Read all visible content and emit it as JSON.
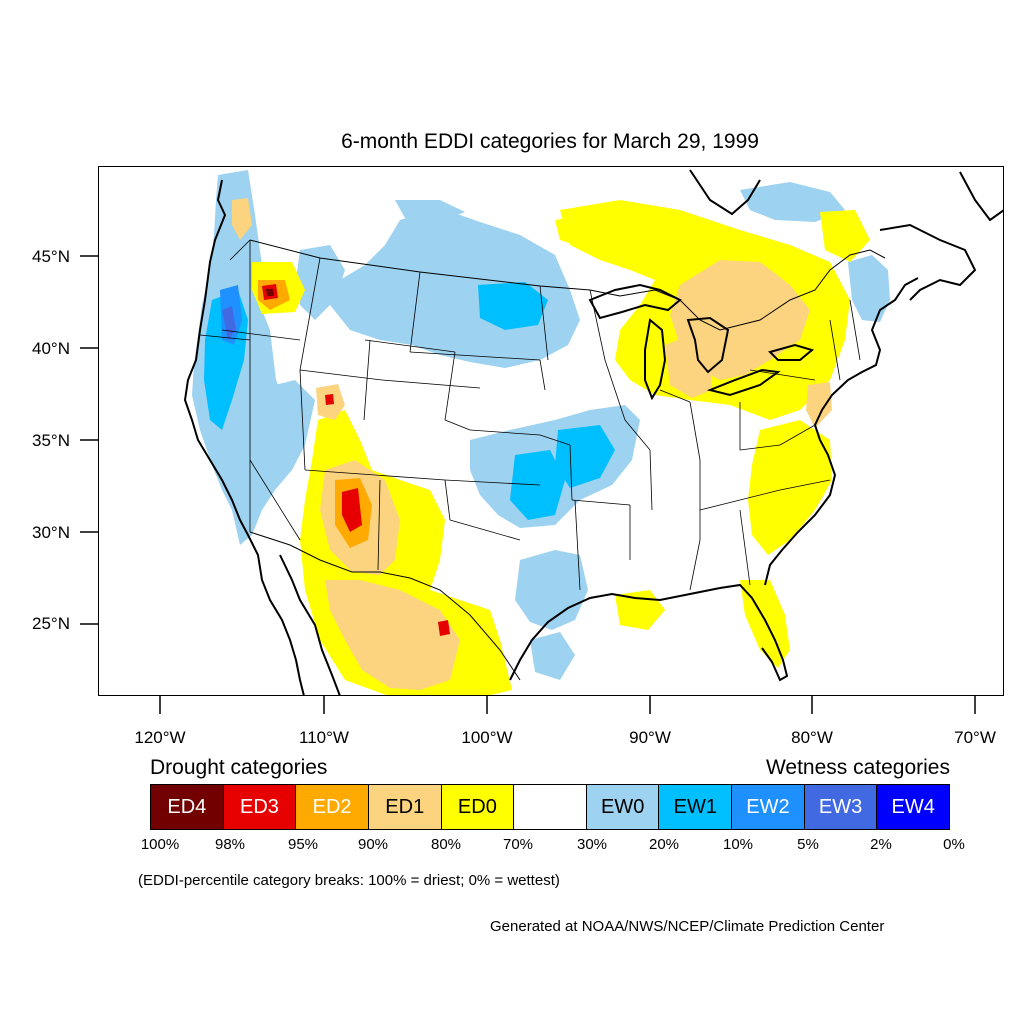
{
  "title": "6-month EDDI categories for March 29, 1999",
  "map": {
    "lat_labels": [
      "45°N",
      "40°N",
      "35°N",
      "30°N",
      "25°N"
    ],
    "lon_labels": [
      "120°W",
      "110°W",
      "100°W",
      "90°W",
      "80°W",
      "70°W"
    ]
  },
  "legend": {
    "drought_heading": "Drought categories",
    "wetness_heading": "Wetness categories",
    "categories": [
      {
        "label": "ED4",
        "color": "#730000",
        "text_color": "#ffffff"
      },
      {
        "label": "ED3",
        "color": "#e60000",
        "text_color": "#ffffff"
      },
      {
        "label": "ED2",
        "color": "#ffaa00",
        "text_color": "#ffffff"
      },
      {
        "label": "ED1",
        "color": "#fcd37f",
        "text_color": "#000000"
      },
      {
        "label": "ED0",
        "color": "#ffff00",
        "text_color": "#000000"
      },
      {
        "label": "",
        "color": "#ffffff",
        "text_color": "#000000"
      },
      {
        "label": "EW0",
        "color": "#9dd2f0",
        "text_color": "#000000"
      },
      {
        "label": "EW1",
        "color": "#00bfff",
        "text_color": "#000000"
      },
      {
        "label": "EW2",
        "color": "#1e90ff",
        "text_color": "#ffffff"
      },
      {
        "label": "EW3",
        "color": "#4169e1",
        "text_color": "#ffffff"
      },
      {
        "label": "EW4",
        "color": "#0000ff",
        "text_color": "#ffffff"
      }
    ],
    "breaks": [
      "100%",
      "98%",
      "95%",
      "90%",
      "80%",
      "70%",
      "30%",
      "20%",
      "10%",
      "5%",
      "2%",
      "0%"
    ],
    "note": "(EDDI-percentile category breaks: 100% = driest; 0% = wettest)"
  },
  "credit": "Generated at NOAA/NWS/NCEP/Climate Prediction Center"
}
